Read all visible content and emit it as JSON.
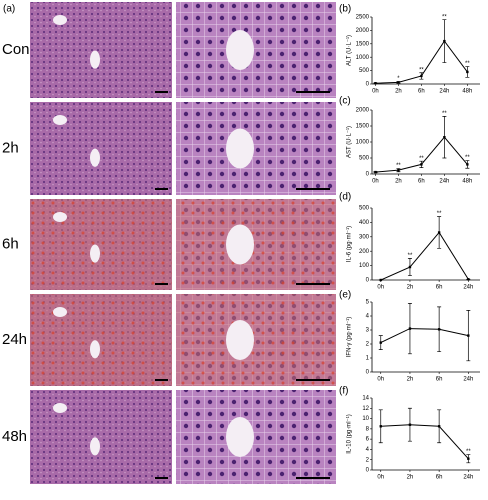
{
  "figure": {
    "panel_label": "(a)",
    "rows": [
      "Con",
      "2h",
      "6h",
      "24h",
      "48h"
    ]
  },
  "chart_data": [
    {
      "type": "line",
      "panel_label": "(b)",
      "ylabel": "ALT (U·L⁻¹)",
      "categories": [
        "0h",
        "2h",
        "6h",
        "24h",
        "48h"
      ],
      "values": [
        30,
        60,
        300,
        1600,
        450
      ],
      "errors": [
        10,
        30,
        120,
        800,
        200
      ],
      "annotations": [
        null,
        "*",
        "**",
        "**",
        "**"
      ],
      "color": "#000000",
      "ylim": [
        0,
        2500
      ],
      "yticks": [
        0,
        500,
        1000,
        1500,
        2000,
        2500
      ]
    },
    {
      "type": "line",
      "panel_label": "(c)",
      "ylabel": "AST (U·L⁻¹)",
      "categories": [
        "0h",
        "2h",
        "6h",
        "24h",
        "48h"
      ],
      "values": [
        60,
        120,
        300,
        1150,
        300
      ],
      "errors": [
        20,
        50,
        100,
        650,
        120
      ],
      "annotations": [
        null,
        "**",
        "**",
        "**",
        "**"
      ],
      "color": "#000000",
      "ylim": [
        0,
        2000
      ],
      "yticks": [
        0,
        500,
        1000,
        1500,
        2000
      ]
    },
    {
      "type": "line",
      "panel_label": "(d)",
      "ylabel": "IL-6 (pg·ml⁻¹)",
      "categories": [
        "0h",
        "2h",
        "6h",
        "24h"
      ],
      "values": [
        0,
        90,
        330,
        5
      ],
      "errors": [
        0,
        60,
        110,
        0
      ],
      "annotations": [
        null,
        "**",
        "**",
        null
      ],
      "color": "#000000",
      "ylim": [
        0,
        500
      ],
      "yticks": [
        0,
        100,
        200,
        300,
        400,
        500
      ]
    },
    {
      "type": "line",
      "panel_label": "(e)",
      "ylabel": "IFN-γ (pg·ml⁻¹)",
      "categories": [
        "0h",
        "2h",
        "6h",
        "24h"
      ],
      "values": [
        2.1,
        3.1,
        3.05,
        2.6
      ],
      "errors": [
        0.5,
        1.8,
        1.6,
        1.8
      ],
      "annotations": [
        null,
        null,
        null,
        null
      ],
      "color": "#000000",
      "ylim": [
        0,
        5
      ],
      "yticks": [
        0,
        1,
        2,
        3,
        4,
        5
      ]
    },
    {
      "type": "line",
      "panel_label": "(f)",
      "ylabel": "IL-10 (pg·ml⁻¹)",
      "categories": [
        "0h",
        "2h",
        "6h",
        "24h"
      ],
      "values": [
        8.5,
        8.8,
        8.5,
        2.2
      ],
      "errors": [
        3.2,
        3.2,
        3.2,
        0.8
      ],
      "annotations": [
        null,
        null,
        null,
        "**"
      ],
      "color": "#000000",
      "ylim": [
        0,
        14
      ],
      "yticks": [
        0,
        2,
        4,
        6,
        8,
        10,
        12,
        14
      ]
    }
  ]
}
